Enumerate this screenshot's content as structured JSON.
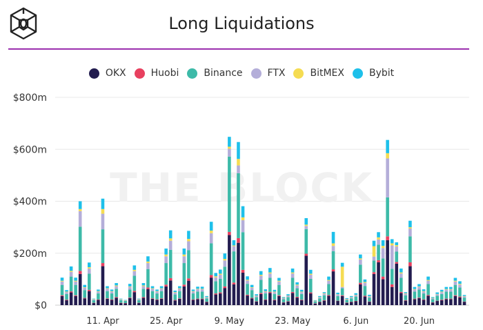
{
  "chart_data": {
    "type": "bar",
    "stacked": true,
    "title": "Long Liquidations",
    "watermark": "THE BLOCK",
    "xlabel": "",
    "ylabel": "",
    "ylim": [
      0,
      800
    ],
    "y_ticks": [
      {
        "value": 0,
        "label": "$0"
      },
      {
        "value": 200,
        "label": "$200m"
      },
      {
        "value": 400,
        "label": "$400m"
      },
      {
        "value": 600,
        "label": "$600m"
      },
      {
        "value": 800,
        "label": "$800m"
      }
    ],
    "x_ticks": [
      {
        "date": "11 Apr",
        "label": "11. Apr"
      },
      {
        "date": "25 Apr",
        "label": "25. Apr"
      },
      {
        "date": "9 May",
        "label": "9. May"
      },
      {
        "date": "23 May",
        "label": "23. May"
      },
      {
        "date": "6 Jun",
        "label": "6. Jun"
      },
      {
        "date": "20 Jun",
        "label": "20. Jun"
      }
    ],
    "grid": true,
    "legend_position": "top",
    "categories": [
      "2 Apr",
      "3 Apr",
      "4 Apr",
      "5 Apr",
      "6 Apr",
      "7 Apr",
      "8 Apr",
      "9 Apr",
      "10 Apr",
      "11 Apr",
      "12 Apr",
      "13 Apr",
      "14 Apr",
      "15 Apr",
      "16 Apr",
      "17 Apr",
      "18 Apr",
      "19 Apr",
      "20 Apr",
      "21 Apr",
      "22 Apr",
      "23 Apr",
      "24 Apr",
      "25 Apr",
      "26 Apr",
      "27 Apr",
      "28 Apr",
      "29 Apr",
      "30 Apr",
      "1 May",
      "2 May",
      "3 May",
      "4 May",
      "5 May",
      "6 May",
      "7 May",
      "8 May",
      "9 May",
      "10 May",
      "11 May",
      "12 May",
      "13 May",
      "14 May",
      "15 May",
      "16 May",
      "17 May",
      "18 May",
      "19 May",
      "20 May",
      "21 May",
      "22 May",
      "23 May",
      "24 May",
      "25 May",
      "26 May",
      "27 May",
      "28 May",
      "29 May",
      "30 May",
      "31 May",
      "1 Jun",
      "2 Jun",
      "3 Jun",
      "4 Jun",
      "5 Jun",
      "6 Jun",
      "7 Jun",
      "8 Jun",
      "9 Jun",
      "10 Jun",
      "11 Jun",
      "12 Jun",
      "13 Jun",
      "14 Jun",
      "15 Jun",
      "16 Jun",
      "17 Jun",
      "18 Jun",
      "19 Jun",
      "20 Jun",
      "21 Jun",
      "22 Jun",
      "23 Jun",
      "24 Jun",
      "25 Jun",
      "26 Jun",
      "27 Jun",
      "28 Jun",
      "29 Jun",
      "30 Jun"
    ],
    "series": [
      {
        "name": "OKX",
        "color": "#221c4f",
        "values": [
          35,
          19,
          49,
          35,
          120,
          26,
          54,
          8,
          20,
          150,
          24,
          20,
          28,
          8,
          7,
          27,
          50,
          8,
          28,
          62,
          24,
          20,
          24,
          72,
          95,
          18,
          24,
          72,
          94,
          20,
          23,
          23,
          12,
          106,
          41,
          45,
          66,
          270,
          80,
          240,
          125,
          37,
          26,
          14,
          43,
          20,
          47,
          19,
          35,
          10,
          14,
          47,
          29,
          19,
          190,
          45,
          6,
          12,
          17,
          36,
          130,
          16,
          35,
          9,
          12,
          15,
          80,
          33,
          13,
          120,
          165,
          100,
          250,
          70,
          160,
          47,
          17,
          150,
          23,
          27,
          20,
          36,
          10,
          16,
          19,
          23,
          23,
          35,
          30,
          13
        ]
      },
      {
        "name": "Huobi",
        "color": "#e8405f",
        "values": [
          3,
          2,
          4,
          3,
          12,
          2,
          5,
          1,
          2,
          12,
          2,
          2,
          3,
          1,
          1,
          2,
          5,
          1,
          3,
          6,
          2,
          2,
          2,
          7,
          9,
          2,
          2,
          7,
          9,
          2,
          2,
          2,
          1,
          10,
          4,
          4,
          6,
          12,
          7,
          18,
          11,
          3,
          2,
          1,
          4,
          2,
          4,
          2,
          3,
          1,
          1,
          4,
          3,
          2,
          8,
          4,
          1,
          1,
          2,
          3,
          8,
          1,
          3,
          1,
          1,
          1,
          6,
          3,
          1,
          7,
          8,
          10,
          15,
          10,
          6,
          4,
          2,
          15,
          2,
          2,
          2,
          3,
          1,
          1,
          2,
          2,
          2,
          3,
          3,
          1
        ]
      },
      {
        "name": "Binance",
        "color": "#3dbaa8",
        "values": [
          40,
          22,
          57,
          40,
          170,
          30,
          62,
          10,
          23,
          130,
          28,
          23,
          32,
          10,
          8,
          31,
          58,
          10,
          32,
          71,
          28,
          23,
          28,
          83,
          109,
          21,
          28,
          83,
          109,
          23,
          27,
          27,
          13,
          122,
          47,
          52,
          76,
          290,
          120,
          250,
          145,
          42,
          30,
          16,
          50,
          23,
          54,
          22,
          40,
          12,
          16,
          54,
          33,
          22,
          95,
          52,
          7,
          13,
          19,
          42,
          70,
          18,
          27,
          10,
          13,
          17,
          70,
          38,
          15,
          45,
          60,
          70,
          150,
          60,
          40,
          54,
          19,
          100,
          27,
          31,
          23,
          42,
          12,
          19,
          22,
          27,
          27,
          40,
          35,
          15
        ]
      },
      {
        "name": "FTX",
        "color": "#b4aed9",
        "values": [
          13,
          7,
          18,
          13,
          60,
          9,
          20,
          3,
          7,
          60,
          9,
          7,
          10,
          3,
          2,
          10,
          18,
          3,
          10,
          23,
          9,
          7,
          9,
          26,
          35,
          7,
          9,
          26,
          34,
          7,
          9,
          9,
          4,
          39,
          15,
          16,
          24,
          30,
          20,
          30,
          46,
          13,
          9,
          5,
          16,
          7,
          17,
          7,
          13,
          4,
          5,
          17,
          11,
          7,
          12,
          16,
          2,
          4,
          6,
          13,
          20,
          6,
          5,
          3,
          4,
          6,
          20,
          12,
          5,
          15,
          20,
          40,
          150,
          90,
          20,
          17,
          6,
          30,
          8,
          10,
          7,
          13,
          4,
          6,
          7,
          8,
          8,
          13,
          11,
          5
        ]
      },
      {
        "name": "BitMEX",
        "color": "#f5dc52",
        "values": [
          3,
          2,
          4,
          3,
          8,
          2,
          5,
          1,
          2,
          18,
          2,
          2,
          3,
          1,
          1,
          2,
          5,
          1,
          3,
          6,
          2,
          2,
          2,
          7,
          9,
          2,
          2,
          7,
          9,
          2,
          2,
          2,
          1,
          10,
          4,
          4,
          6,
          8,
          3,
          25,
          11,
          3,
          2,
          1,
          4,
          2,
          4,
          2,
          3,
          1,
          1,
          4,
          3,
          2,
          5,
          4,
          1,
          1,
          2,
          3,
          10,
          1,
          78,
          1,
          1,
          1,
          4,
          3,
          1,
          40,
          8,
          8,
          20,
          8,
          5,
          4,
          2,
          5,
          2,
          2,
          2,
          3,
          1,
          1,
          2,
          2,
          2,
          3,
          3,
          1
        ]
      },
      {
        "name": "Bybit",
        "color": "#1ec0ea",
        "values": [
          12,
          6,
          17,
          12,
          30,
          9,
          18,
          2,
          6,
          40,
          8,
          6,
          9,
          2,
          1,
          10,
          17,
          2,
          9,
          20,
          8,
          6,
          8,
          23,
          31,
          6,
          8,
          23,
          31,
          6,
          8,
          8,
          4,
          34,
          13,
          16,
          21,
          38,
          20,
          65,
          43,
          13,
          9,
          5,
          14,
          7,
          17,
          7,
          11,
          3,
          5,
          15,
          9,
          7,
          25,
          15,
          2,
          4,
          4,
          13,
          44,
          6,
          15,
          3,
          4,
          6,
          15,
          10,
          5,
          21,
          20,
          22,
          51,
          16,
          11,
          15,
          4,
          25,
          8,
          9,
          7,
          13,
          3,
          6,
          7,
          8,
          8,
          11,
          10,
          4
        ]
      }
    ]
  },
  "colors": {
    "accent_rule": "#9b2fae",
    "grid": "#e8e8e8"
  },
  "icons": {
    "logo": "the-block-cube-logo"
  }
}
